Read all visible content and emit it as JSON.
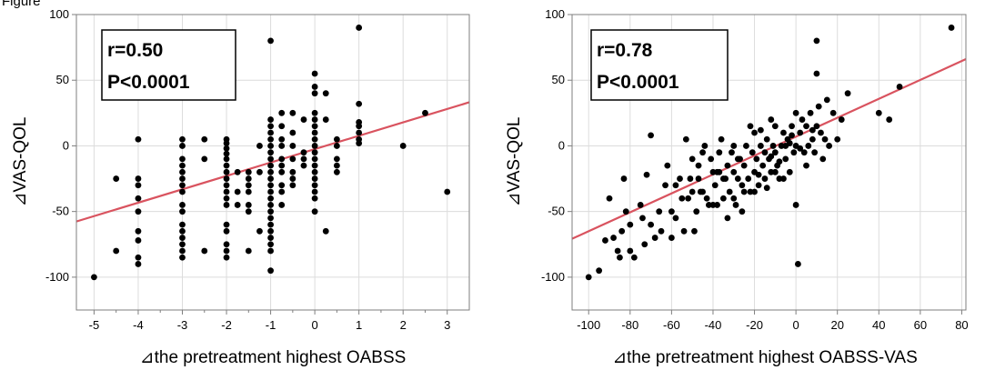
{
  "page_label": "Figure",
  "chart_data": [
    {
      "type": "scatter",
      "xlabel": "⊿the pretreatment highest OABSS",
      "ylabel": "⊿VAS-QOL",
      "xlim": [
        -5.4,
        3.5
      ],
      "ylim": [
        -125,
        100
      ],
      "x_ticks": [
        -5,
        -4,
        -3,
        -2,
        -1,
        0,
        1,
        2,
        3
      ],
      "y_ticks": [
        -100,
        -50,
        0,
        50,
        100
      ],
      "x_minor_ticks": [
        -4.5,
        -3.5,
        -2.5,
        -1.5,
        -0.5,
        0.5,
        1.5,
        2.5
      ],
      "annotation": [
        "r=0.50",
        "P<0.0001"
      ],
      "fit_line": {
        "intercept": -2.5,
        "slope": 10.2,
        "color": "#d9535f"
      },
      "point_color": "#000000",
      "points": [
        [
          -5,
          -100
        ],
        [
          -4.5,
          -25
        ],
        [
          -4.5,
          -80
        ],
        [
          -4,
          5
        ],
        [
          -4,
          -25
        ],
        [
          -4,
          -30
        ],
        [
          -4,
          -40
        ],
        [
          -4,
          -50
        ],
        [
          -4,
          -65
        ],
        [
          -4,
          -72
        ],
        [
          -4,
          -85
        ],
        [
          -4,
          -90
        ],
        [
          -3,
          5
        ],
        [
          -3,
          0
        ],
        [
          -3,
          -10
        ],
        [
          -3,
          -15
        ],
        [
          -3,
          -20
        ],
        [
          -3,
          -25
        ],
        [
          -3,
          -30
        ],
        [
          -3,
          -35
        ],
        [
          -3,
          -45
        ],
        [
          -3,
          -50
        ],
        [
          -3,
          -60
        ],
        [
          -3,
          -65
        ],
        [
          -3,
          -70
        ],
        [
          -3,
          -75
        ],
        [
          -3,
          -80
        ],
        [
          -3,
          -85
        ],
        [
          -2.5,
          5
        ],
        [
          -2.5,
          -10
        ],
        [
          -2.5,
          -80
        ],
        [
          -2,
          5
        ],
        [
          -2,
          2
        ],
        [
          -2,
          -2
        ],
        [
          -2,
          -6
        ],
        [
          -2,
          -10
        ],
        [
          -2,
          -15
        ],
        [
          -2,
          -20
        ],
        [
          -2,
          -25
        ],
        [
          -2,
          -30
        ],
        [
          -2,
          -35
        ],
        [
          -2,
          -40
        ],
        [
          -2,
          -45
        ],
        [
          -2,
          -60
        ],
        [
          -2,
          -65
        ],
        [
          -2,
          -75
        ],
        [
          -2,
          -80
        ],
        [
          -2,
          -85
        ],
        [
          -1.75,
          -20
        ],
        [
          -1.75,
          -35
        ],
        [
          -1.75,
          -45
        ],
        [
          -1.5,
          -20
        ],
        [
          -1.5,
          -25
        ],
        [
          -1.5,
          -30
        ],
        [
          -1.5,
          -35
        ],
        [
          -1.5,
          -45
        ],
        [
          -1.5,
          -50
        ],
        [
          -1.5,
          -80
        ],
        [
          -1.25,
          0
        ],
        [
          -1.25,
          -20
        ],
        [
          -1.25,
          -65
        ],
        [
          -1,
          80
        ],
        [
          -1,
          20
        ],
        [
          -1,
          15
        ],
        [
          -1,
          10
        ],
        [
          -1,
          5
        ],
        [
          -1,
          0
        ],
        [
          -1,
          -5
        ],
        [
          -1,
          -10
        ],
        [
          -1,
          -15
        ],
        [
          -1,
          -20
        ],
        [
          -1,
          -25
        ],
        [
          -1,
          -30
        ],
        [
          -1,
          -35
        ],
        [
          -1,
          -40
        ],
        [
          -1,
          -45
        ],
        [
          -1,
          -50
        ],
        [
          -1,
          -55
        ],
        [
          -1,
          -60
        ],
        [
          -1,
          -65
        ],
        [
          -1,
          -70
        ],
        [
          -1,
          -75
        ],
        [
          -1,
          -80
        ],
        [
          -1,
          -95
        ],
        [
          -0.75,
          25
        ],
        [
          -0.75,
          15
        ],
        [
          -0.75,
          5
        ],
        [
          -0.75,
          0
        ],
        [
          -0.75,
          -10
        ],
        [
          -0.75,
          -15
        ],
        [
          -0.75,
          -20
        ],
        [
          -0.75,
          -30
        ],
        [
          -0.75,
          -35
        ],
        [
          -0.75,
          -45
        ],
        [
          -0.5,
          25
        ],
        [
          -0.5,
          10
        ],
        [
          -0.5,
          0
        ],
        [
          -0.5,
          -10
        ],
        [
          -0.5,
          -20
        ],
        [
          -0.5,
          -25
        ],
        [
          -0.5,
          -30
        ],
        [
          -0.25,
          20
        ],
        [
          -0.25,
          -5
        ],
        [
          -0.25,
          -10
        ],
        [
          -0.25,
          -15
        ],
        [
          0,
          55
        ],
        [
          0,
          45
        ],
        [
          0,
          40
        ],
        [
          0,
          25
        ],
        [
          0,
          20
        ],
        [
          0,
          15
        ],
        [
          0,
          10
        ],
        [
          0,
          5
        ],
        [
          0,
          0
        ],
        [
          0,
          -5
        ],
        [
          0,
          -10
        ],
        [
          0,
          -15
        ],
        [
          0,
          -20
        ],
        [
          0,
          -25
        ],
        [
          0,
          -30
        ],
        [
          0,
          -35
        ],
        [
          0,
          -40
        ],
        [
          0,
          -50
        ],
        [
          0.25,
          40
        ],
        [
          0.25,
          20
        ],
        [
          0.25,
          -65
        ],
        [
          0.5,
          5
        ],
        [
          0.5,
          0
        ],
        [
          0.5,
          -10
        ],
        [
          0.5,
          -15
        ],
        [
          0.5,
          -20
        ],
        [
          1,
          90
        ],
        [
          1,
          32
        ],
        [
          1,
          18
        ],
        [
          1,
          15
        ],
        [
          1,
          10
        ],
        [
          1,
          5
        ],
        [
          1,
          2
        ],
        [
          2,
          0
        ],
        [
          2.5,
          25
        ],
        [
          3,
          -35
        ]
      ]
    },
    {
      "type": "scatter",
      "xlabel": "⊿the pretreatment highest OABSS-VAS",
      "ylabel": "⊿VAS-QOL",
      "xlim": [
        -108,
        82
      ],
      "ylim": [
        -125,
        100
      ],
      "x_ticks": [
        -100,
        -80,
        -60,
        -40,
        -20,
        0,
        20,
        40,
        60,
        80
      ],
      "y_ticks": [
        -100,
        -50,
        0,
        50,
        100
      ],
      "x_minor_ticks": [],
      "annotation": [
        "r=0.78",
        "P<0.0001"
      ],
      "fit_line": {
        "intercept": 7,
        "slope": 0.72,
        "color": "#d9535f"
      },
      "point_color": "#000000",
      "points": [
        [
          -100,
          -100
        ],
        [
          -95,
          -95
        ],
        [
          -92,
          -72
        ],
        [
          -90,
          -40
        ],
        [
          -88,
          -70
        ],
        [
          -86,
          -80
        ],
        [
          -85,
          -85
        ],
        [
          -84,
          -65
        ],
        [
          -83,
          -25
        ],
        [
          -82,
          -50
        ],
        [
          -80,
          -80
        ],
        [
          -80,
          -60
        ],
        [
          -78,
          -85
        ],
        [
          -75,
          -45
        ],
        [
          -74,
          -55
        ],
        [
          -73,
          -75
        ],
        [
          -72,
          -22
        ],
        [
          -70,
          8
        ],
        [
          -70,
          -60
        ],
        [
          -68,
          -70
        ],
        [
          -66,
          -50
        ],
        [
          -65,
          -65
        ],
        [
          -63,
          -30
        ],
        [
          -62,
          -15
        ],
        [
          -60,
          -50
        ],
        [
          -60,
          -70
        ],
        [
          -58,
          -55
        ],
        [
          -56,
          -25
        ],
        [
          -55,
          -40
        ],
        [
          -54,
          -65
        ],
        [
          -53,
          5
        ],
        [
          -52,
          -40
        ],
        [
          -51,
          -25
        ],
        [
          -50,
          -10
        ],
        [
          -49,
          -65
        ],
        [
          -48,
          -50
        ],
        [
          -47,
          -25
        ],
        [
          -46,
          -35
        ],
        [
          -45,
          -5
        ],
        [
          -44,
          0
        ],
        [
          -43,
          -40
        ],
        [
          -42,
          -45
        ],
        [
          -41,
          -10
        ],
        [
          -40,
          -20
        ],
        [
          -39,
          -30
        ],
        [
          -38,
          -45
        ],
        [
          -37,
          -20
        ],
        [
          -36,
          5
        ],
        [
          -35,
          -40
        ],
        [
          -34,
          -25
        ],
        [
          -33,
          -15
        ],
        [
          -32,
          -35
        ],
        [
          -31,
          -5
        ],
        [
          -30,
          -20
        ],
        [
          -30,
          0
        ],
        [
          -29,
          -45
        ],
        [
          -28,
          -25
        ],
        [
          -27,
          -10
        ],
        [
          -26,
          -30
        ],
        [
          -25,
          -15
        ],
        [
          -24,
          0
        ],
        [
          -23,
          -25
        ],
        [
          -22,
          -35
        ],
        [
          -21,
          -5
        ],
        [
          -20,
          -20
        ],
        [
          -20,
          10
        ],
        [
          -19,
          -10
        ],
        [
          -18,
          -30
        ],
        [
          -17,
          0
        ],
        [
          -16,
          -15
        ],
        [
          -15,
          -25
        ],
        [
          -14,
          5
        ],
        [
          -13,
          -10
        ],
        [
          -12,
          -20
        ],
        [
          -11,
          0
        ],
        [
          -10,
          -5
        ],
        [
          -10,
          15
        ],
        [
          -9,
          -15
        ],
        [
          -8,
          -25
        ],
        [
          -7,
          0
        ],
        [
          -6,
          10
        ],
        [
          -5,
          -10
        ],
        [
          -4,
          5
        ],
        [
          -3,
          -20
        ],
        [
          -2,
          15
        ],
        [
          -1,
          -5
        ],
        [
          0,
          0
        ],
        [
          0,
          25
        ],
        [
          0,
          -45
        ],
        [
          1,
          -90
        ],
        [
          2,
          10
        ],
        [
          3,
          20
        ],
        [
          4,
          -5
        ],
        [
          5,
          15
        ],
        [
          6,
          0
        ],
        [
          7,
          25
        ],
        [
          8,
          5
        ],
        [
          9,
          -5
        ],
        [
          10,
          80
        ],
        [
          10,
          55
        ],
        [
          10,
          15
        ],
        [
          11,
          30
        ],
        [
          12,
          10
        ],
        [
          13,
          -10
        ],
        [
          14,
          5
        ],
        [
          15,
          35
        ],
        [
          16,
          0
        ],
        [
          18,
          25
        ],
        [
          20,
          5
        ],
        [
          22,
          20
        ],
        [
          25,
          40
        ],
        [
          40,
          25
        ],
        [
          45,
          20
        ],
        [
          50,
          45
        ],
        [
          75,
          90
        ],
        [
          -25,
          -35
        ],
        [
          -35,
          -25
        ],
        [
          -45,
          -35
        ],
        [
          -15,
          -5
        ],
        [
          -5,
          0
        ],
        [
          -10,
          -20
        ],
        [
          -20,
          -35
        ],
        [
          -30,
          -40
        ],
        [
          -40,
          -45
        ],
        [
          -50,
          -35
        ],
        [
          -28,
          -10
        ],
        [
          -18,
          -22
        ],
        [
          -8,
          -12
        ],
        [
          -3,
          2
        ],
        [
          2,
          -2
        ],
        [
          -22,
          15
        ],
        [
          -12,
          20
        ],
        [
          -6,
          -25
        ],
        [
          5,
          -15
        ],
        [
          -26,
          -50
        ],
        [
          -33,
          -55
        ],
        [
          -38,
          -20
        ],
        [
          -58,
          -30
        ],
        [
          -14,
          -32
        ],
        [
          -2,
          8
        ],
        [
          8,
          12
        ],
        [
          -12,
          -8
        ],
        [
          -17,
          12
        ],
        [
          -37,
          -5
        ],
        [
          -47,
          -15
        ]
      ]
    }
  ]
}
